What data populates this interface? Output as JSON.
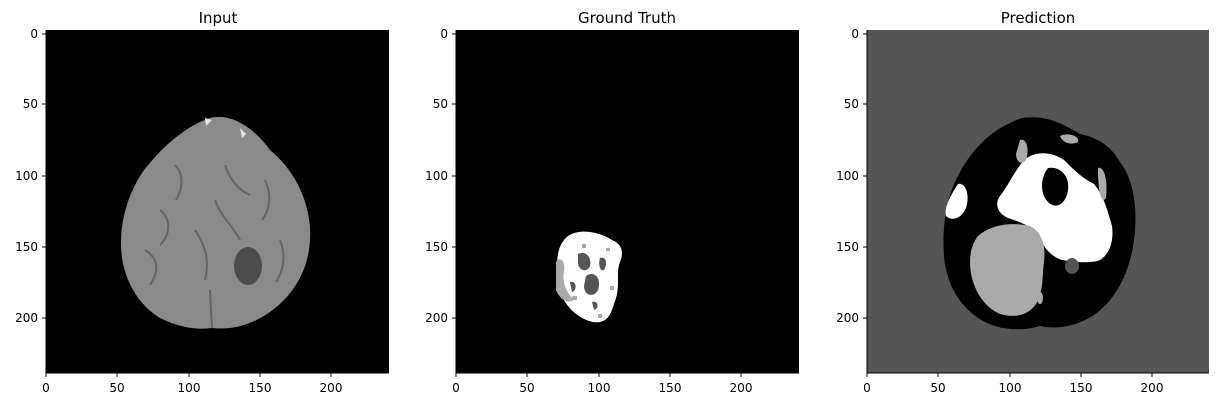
{
  "panels": [
    {
      "title": "Input",
      "x_ticks": [
        "0",
        "50",
        "100",
        "150",
        "200"
      ],
      "y_ticks": [
        "0",
        "50",
        "100",
        "150",
        "200"
      ]
    },
    {
      "title": "Ground Truth",
      "x_ticks": [
        "0",
        "50",
        "100",
        "150",
        "200"
      ],
      "y_ticks": [
        "0",
        "50",
        "100",
        "150",
        "200"
      ]
    },
    {
      "title": "Prediction",
      "x_ticks": [
        "0",
        "50",
        "100",
        "150",
        "200"
      ],
      "y_ticks": [
        "0",
        "50",
        "100",
        "150",
        "200"
      ]
    }
  ],
  "colors": {
    "background_black": "#000000",
    "prediction_bg": "#555555",
    "label_dark": "#555555",
    "label_mid": "#aaaaaa",
    "label_white": "#ffffff",
    "brain_gray": "#8a8a8a"
  }
}
